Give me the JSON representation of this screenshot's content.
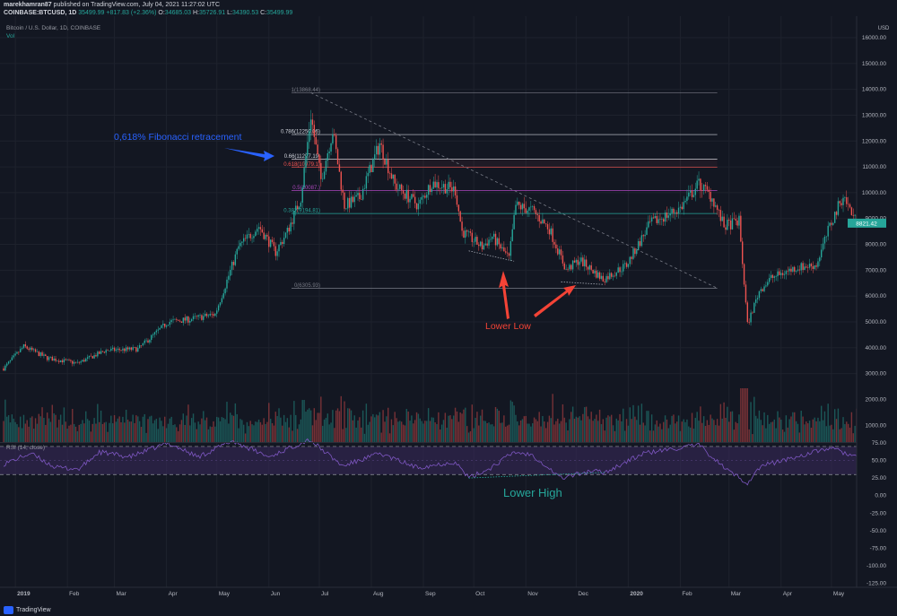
{
  "header": {
    "line1_user": "marekhamran87",
    "line1_rest": " published on TradingView.com, July 04, 2021 11:27:02 UTC",
    "line2_symbol": "COINBASE:BTCUSD, 1D",
    "line2_price": "35499.99",
    "line2_change": "+817.83 (+2.36%)",
    "line2_o": "34685.03",
    "line2_h": "35726.91",
    "line2_l": "34390.53",
    "line2_c": "35499.99"
  },
  "legend": {
    "symbol_name": "Bitcoin / U.S. Dollar, 1D, COINBASE",
    "volume_label": "Vol",
    "rsi_label": "RSI (14, close)"
  },
  "footer": {
    "brand": "TradingView"
  },
  "colors": {
    "background": "#131722",
    "up": "#26a69a",
    "down": "#ef5350",
    "rsi_line": "#7e57c2",
    "rsi_band": "#3b2a5c",
    "annotation_blue": "#2962ff",
    "annotation_red": "#f44336",
    "annotation_green": "#26a69a"
  },
  "chart_data": [
    {
      "type": "candlestick",
      "title": "Bitcoin / U.S. Dollar, 1D, COINBASE",
      "price_axis_label": "USD",
      "y_ticks": [
        1000,
        2000,
        3000,
        4000,
        5000,
        6000,
        7000,
        8000,
        9000,
        10000,
        11000,
        12000,
        13000,
        14000,
        15000,
        16000
      ],
      "ylim": [
        0,
        16500
      ],
      "current_price_label": "8821.42",
      "x_ticks": [
        "2019",
        "Feb",
        "Mar",
        "Apr",
        "May",
        "Jun",
        "Jul",
        "Aug",
        "Sep",
        "Oct",
        "Nov",
        "Dec",
        "2020",
        "Feb",
        "Mar",
        "Apr",
        "May"
      ],
      "x_tick_dates": [
        "2019-01-01",
        "2019-02-01",
        "2019-03-01",
        "2019-04-01",
        "2019-05-01",
        "2019-06-01",
        "2019-07-01",
        "2019-08-01",
        "2019-09-01",
        "2019-10-01",
        "2019-11-01",
        "2019-12-01",
        "2020-01-01",
        "2020-02-01",
        "2020-03-01",
        "2020-04-01",
        "2020-05-01"
      ],
      "x_range": [
        "2018-12-25",
        "2020-05-16"
      ],
      "price_path": [
        [
          "2018-12-25",
          3200
        ],
        [
          "2019-01-06",
          4050
        ],
        [
          "2019-01-20",
          3600
        ],
        [
          "2019-02-07",
          3400
        ],
        [
          "2019-02-24",
          3900
        ],
        [
          "2019-03-15",
          3950
        ],
        [
          "2019-04-02",
          5000
        ],
        [
          "2019-04-15",
          5100
        ],
        [
          "2019-04-30",
          5300
        ],
        [
          "2019-05-14",
          7900
        ],
        [
          "2019-05-26",
          8700
        ],
        [
          "2019-06-05",
          7700
        ],
        [
          "2019-06-12",
          8500
        ],
        [
          "2019-06-20",
          9800
        ],
        [
          "2019-06-26",
          13000
        ],
        [
          "2019-07-02",
          10500
        ],
        [
          "2019-07-09",
          12400
        ],
        [
          "2019-07-16",
          9500
        ],
        [
          "2019-07-25",
          9800
        ],
        [
          "2019-08-06",
          11900
        ],
        [
          "2019-08-15",
          10300
        ],
        [
          "2019-08-29",
          9500
        ],
        [
          "2019-09-06",
          10400
        ],
        [
          "2019-09-20",
          10100
        ],
        [
          "2019-09-24",
          8500
        ],
        [
          "2019-10-06",
          7900
        ],
        [
          "2019-10-12",
          8300
        ],
        [
          "2019-10-22",
          7450
        ],
        [
          "2019-10-26",
          9500
        ],
        [
          "2019-11-05",
          9300
        ],
        [
          "2019-11-15",
          8600
        ],
        [
          "2019-11-25",
          7000
        ],
        [
          "2019-12-03",
          7400
        ],
        [
          "2019-12-17",
          6650
        ],
        [
          "2019-12-31",
          7200
        ],
        [
          "2020-01-14",
          8800
        ],
        [
          "2020-02-01",
          9400
        ],
        [
          "2020-02-12",
          10350
        ],
        [
          "2020-02-20",
          9800
        ],
        [
          "2020-02-27",
          8700
        ],
        [
          "2020-03-07",
          8900
        ],
        [
          "2020-03-12",
          4900
        ],
        [
          "2020-03-19",
          6200
        ],
        [
          "2020-03-26",
          6700
        ],
        [
          "2020-04-10",
          7100
        ],
        [
          "2020-04-22",
          7200
        ],
        [
          "2020-04-30",
          8700
        ],
        [
          "2020-05-08",
          9900
        ],
        [
          "2020-05-16",
          8821
        ]
      ],
      "fibonacci": [
        {
          "label": "1(13868.44)",
          "level": 13868.44,
          "color": "#787b86"
        },
        {
          "label": "0.786(12250.06)",
          "level": 12250.06,
          "color": "#d1d4dc"
        },
        {
          "label": "0.66(11297.19)",
          "level": 11297.19,
          "color": "#d1d4dc"
        },
        {
          "label": "0.618(10979.1)",
          "level": 10979.1,
          "color": "#ef5350"
        },
        {
          "label": "0.5(10087.)",
          "level": 10087,
          "color": "#ab47bc"
        },
        {
          "label": "0.382(9194.81)",
          "level": 9194.81,
          "color": "#26a69a"
        },
        {
          "label": "0(6305.93)",
          "level": 6305.93,
          "color": "#787b86"
        }
      ],
      "fib_x_range": [
        "2019-06-26",
        "2020-02-23"
      ],
      "trendline": {
        "from": [
          "2019-06-26",
          13868
        ],
        "to": [
          "2020-02-23",
          6305
        ]
      },
      "divergence_lows": [
        {
          "from": [
            "2019-09-28",
            7750
          ],
          "to": [
            "2019-10-25",
            7350
          ]
        },
        {
          "from": [
            "2019-11-22",
            6550
          ],
          "to": [
            "2019-12-17",
            6450
          ]
        }
      ],
      "annotations": [
        {
          "text": "0,618% Fibonacci retracement",
          "color": "#2962ff"
        },
        {
          "text": "Lower Low",
          "color": "#f44336"
        }
      ]
    },
    {
      "type": "bar",
      "title": "Vol",
      "note": "daily volume histogram beneath price"
    },
    {
      "type": "line",
      "title": "RSI (14, close)",
      "y_ticks": [
        75,
        50,
        25,
        0,
        -25,
        -50,
        -75,
        -100,
        -125
      ],
      "y_tick_labels": [
        "75.00",
        "50.00",
        "25.00",
        "0.00",
        "-25.00",
        "-50.00",
        "-75.00",
        "-100.00",
        "-125.00"
      ],
      "ylim": [
        -130,
        78
      ],
      "bands": [
        70,
        30
      ],
      "rsi_path": [
        [
          "2018-12-25",
          45
        ],
        [
          "2019-01-10",
          60
        ],
        [
          "2019-01-25",
          40
        ],
        [
          "2019-02-08",
          38
        ],
        [
          "2019-02-20",
          62
        ],
        [
          "2019-03-10",
          55
        ],
        [
          "2019-04-02",
          75
        ],
        [
          "2019-04-20",
          55
        ],
        [
          "2019-05-10",
          78
        ],
        [
          "2019-06-01",
          55
        ],
        [
          "2019-06-25",
          80
        ],
        [
          "2019-07-15",
          42
        ],
        [
          "2019-08-06",
          60
        ],
        [
          "2019-08-28",
          40
        ],
        [
          "2019-09-20",
          48
        ],
        [
          "2019-09-28",
          25
        ],
        [
          "2019-10-10",
          38
        ],
        [
          "2019-10-25",
          62
        ],
        [
          "2019-11-05",
          58
        ],
        [
          "2019-11-22",
          25
        ],
        [
          "2019-12-10",
          35
        ],
        [
          "2019-12-18",
          33
        ],
        [
          "2020-01-10",
          60
        ],
        [
          "2020-02-12",
          72
        ],
        [
          "2020-02-28",
          38
        ],
        [
          "2020-03-12",
          18
        ],
        [
          "2020-03-20",
          42
        ],
        [
          "2020-04-10",
          55
        ],
        [
          "2020-04-30",
          68
        ],
        [
          "2020-05-16",
          55
        ]
      ],
      "divergence_highs": {
        "from": [
          "2019-09-28",
          25
        ],
        "to": [
          "2019-12-18",
          33
        ]
      },
      "annotations": [
        {
          "text": "Lower High",
          "color": "#26a69a"
        }
      ]
    }
  ]
}
